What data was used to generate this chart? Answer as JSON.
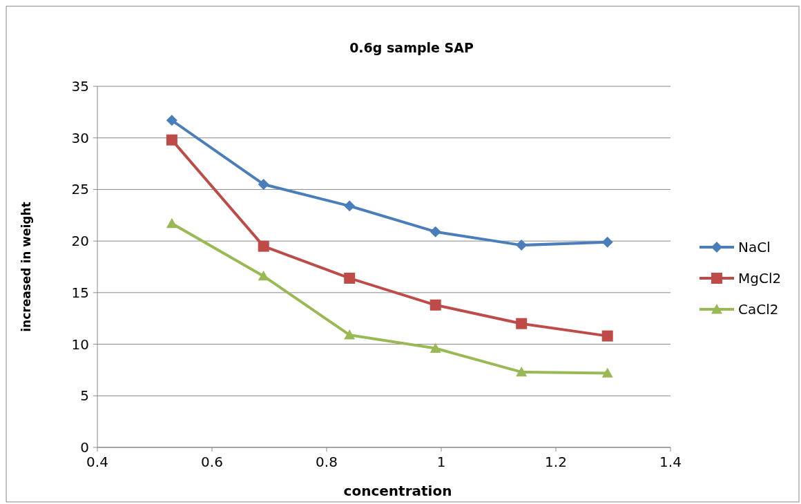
{
  "chart_data": {
    "type": "line",
    "title": "0.6g sample SAP",
    "xlabel": "concentration",
    "ylabel": "increased in weight",
    "x": [
      0.53,
      0.69,
      0.84,
      0.99,
      1.14,
      1.29
    ],
    "series": [
      {
        "name": "NaCl",
        "color": "#4a7ebb",
        "marker": "diamond",
        "values": [
          31.7,
          25.5,
          23.4,
          20.9,
          19.6,
          19.9
        ]
      },
      {
        "name": "MgCl2",
        "color": "#be4b48",
        "marker": "square",
        "values": [
          29.8,
          19.5,
          16.4,
          13.8,
          12.0,
          10.8
        ]
      },
      {
        "name": "CaCl2",
        "color": "#98b954",
        "marker": "triangle",
        "values": [
          21.7,
          16.6,
          10.9,
          9.6,
          7.3,
          7.2
        ]
      }
    ],
    "xlim": [
      0.4,
      1.4
    ],
    "xticks": [
      0.4,
      0.6,
      0.8,
      1,
      1.2,
      1.4
    ],
    "ylim": [
      0,
      35
    ],
    "yticks": [
      0,
      5,
      10,
      15,
      20,
      25,
      30,
      35
    ],
    "grid": "y",
    "legend": "right"
  }
}
